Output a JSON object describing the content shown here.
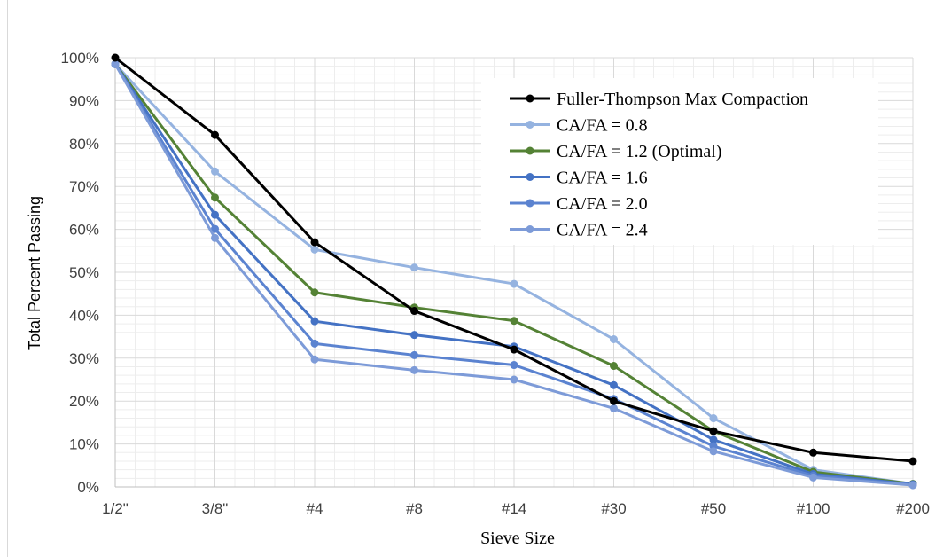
{
  "chart_data": {
    "type": "line",
    "title": "",
    "xlabel": "Sieve Size",
    "ylabel": "Total Percent Passing",
    "categories": [
      "1/2\"",
      "3/8\"",
      "#4",
      "#8",
      "#14",
      "#30",
      "#50",
      "#100",
      "#200"
    ],
    "y_ticks": [
      "0%",
      "10%",
      "20%",
      "30%",
      "40%",
      "50%",
      "60%",
      "70%",
      "80%",
      "90%",
      "100%"
    ],
    "ylim": [
      0,
      100
    ],
    "grid": true,
    "legend_position": "top-right",
    "series": [
      {
        "name": "Fuller-Thompson Max Compaction",
        "color": "#000000",
        "values": [
          100,
          82,
          57,
          41,
          32,
          20,
          13,
          8,
          6
        ]
      },
      {
        "name": "CA/FA = 0.8",
        "color": "#95b3e0",
        "values": [
          98.5,
          73.5,
          55.3,
          51.1,
          47.3,
          34.4,
          16,
          4,
          0.7
        ]
      },
      {
        "name": "CA/FA = 1.2 (Optimal)",
        "color": "#548235",
        "values": [
          98.5,
          67.4,
          45.3,
          41.8,
          38.7,
          28.2,
          13,
          3.5,
          0.7
        ]
      },
      {
        "name": "CA/FA = 1.6",
        "color": "#4472c4",
        "values": [
          98.5,
          63.4,
          38.6,
          35.4,
          32.7,
          23.7,
          11,
          3,
          0.6
        ]
      },
      {
        "name": "CA/FA = 2.0",
        "color": "#5b83d0",
        "values": [
          98.5,
          60.1,
          33.4,
          30.7,
          28.4,
          20.5,
          9.5,
          2.6,
          0.5
        ]
      },
      {
        "name": "CA/FA = 2.4",
        "color": "#7d9bd8",
        "values": [
          98.5,
          58,
          29.7,
          27.2,
          25,
          18.3,
          8.3,
          2.2,
          0.4
        ]
      }
    ]
  }
}
